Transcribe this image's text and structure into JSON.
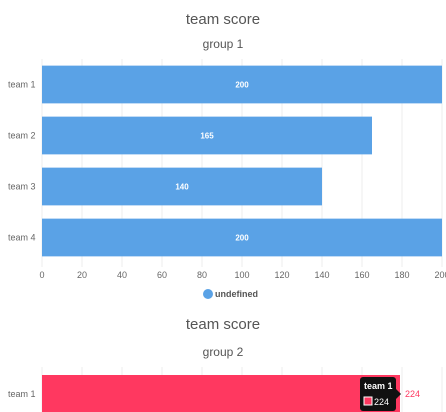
{
  "chart_data": [
    {
      "type": "bar",
      "orientation": "horizontal",
      "title": "team score",
      "subtitle": "group 1",
      "categories": [
        "team 1",
        "team 2",
        "team 3",
        "team 4"
      ],
      "values": [
        200,
        165,
        140,
        200
      ],
      "value_labels": [
        "200",
        "165",
        "140",
        "200"
      ],
      "xlim": [
        0,
        200
      ],
      "x_ticks": [
        "0",
        "20",
        "40",
        "60",
        "80",
        "100",
        "120",
        "140",
        "160",
        "180",
        "200"
      ],
      "grid": true,
      "legend": "undefined",
      "legend_position": "bottom",
      "color": "#5aa2e6"
    },
    {
      "type": "bar",
      "orientation": "horizontal",
      "title": "team score",
      "subtitle": "group 2",
      "categories": [
        "team 1"
      ],
      "values": [
        224
      ],
      "value_labels": [
        "224"
      ],
      "xlim": [
        0,
        224
      ],
      "grid": true,
      "color": "#ff3860",
      "tooltip": {
        "title": "team 1",
        "value": "224"
      }
    }
  ]
}
